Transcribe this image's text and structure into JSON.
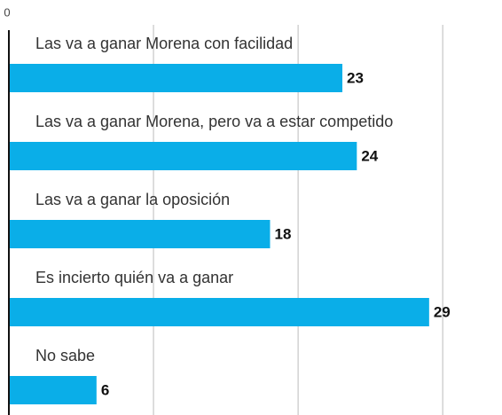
{
  "chart_data": {
    "type": "bar",
    "orientation": "horizontal",
    "categories": [
      "Las va a ganar Morena con facilidad",
      "Las va a ganar Morena, pero va a estar competido",
      "Las va a ganar la oposición",
      "Es incierto quién va a ganar",
      "No sabe"
    ],
    "values": [
      23,
      24,
      18,
      29,
      6
    ],
    "color": "#0aaee8",
    "xlim": [
      0,
      34.1
    ],
    "xticks": [
      0
    ],
    "gridlines": [
      10,
      20,
      30
    ],
    "grid": true
  }
}
